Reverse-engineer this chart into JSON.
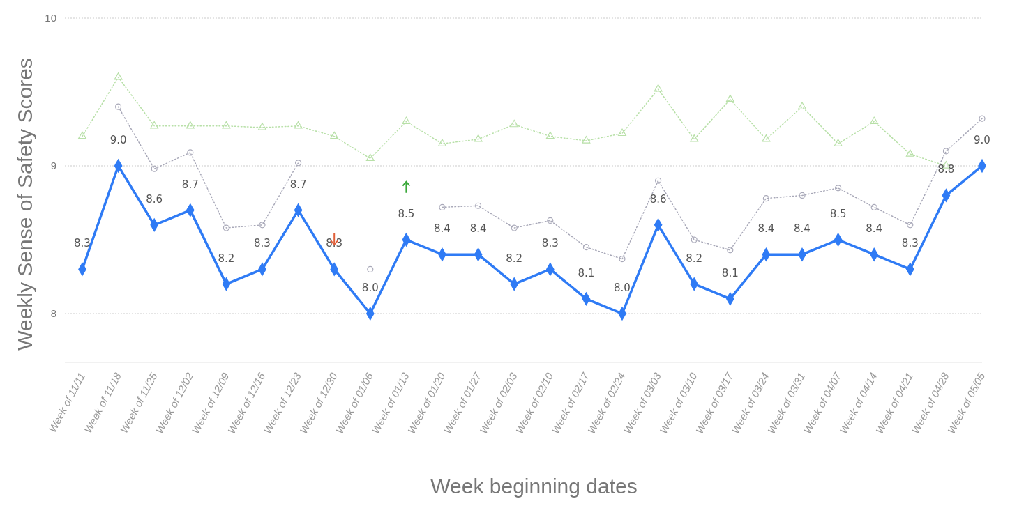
{
  "chart_data": {
    "type": "line",
    "xlabel": "Week beginning dates",
    "ylabel": "Weekly Sense of Safety Scores",
    "categories": [
      "Week of 11/11",
      "Week of 11/18",
      "Week of 11/25",
      "Week of 12/02",
      "Week of 12/09",
      "Week of 12/16",
      "Week of 12/23",
      "Week of 12/30",
      "Week of 01/06",
      "Week of 01/13",
      "Week of 01/20",
      "Week of 01/27",
      "Week of 02/03",
      "Week of 02/10",
      "Week of 02/17",
      "Week of 02/24",
      "Week of 03/03",
      "Week of 03/10",
      "Week of 03/17",
      "Week of 03/24",
      "Week of 03/31",
      "Week of 04/07",
      "Week of 04/14",
      "Week of 04/21",
      "Week of 04/28",
      "Week of 05/05"
    ],
    "series": [
      {
        "color": "#b8e0a8",
        "marker": "triangle",
        "line_style": "dotted",
        "values": [
          9.2,
          9.6,
          9.27,
          9.27,
          9.27,
          9.26,
          9.27,
          9.2,
          9.05,
          9.3,
          9.15,
          9.18,
          9.28,
          9.2,
          9.17,
          9.22,
          9.52,
          9.18,
          9.45,
          9.18,
          9.4,
          9.15,
          9.3,
          9.08,
          9.0,
          null
        ]
      },
      {
        "color": "#a8a8b8",
        "marker": "circle",
        "line_style": "dotted",
        "values": [
          null,
          9.4,
          8.98,
          9.09,
          8.58,
          8.6,
          9.02,
          null,
          8.3,
          null,
          8.72,
          8.73,
          8.58,
          8.63,
          8.45,
          8.37,
          8.9,
          8.5,
          8.43,
          8.78,
          8.8,
          8.85,
          8.72,
          8.6,
          9.1,
          9.32
        ]
      },
      {
        "color": "#2f7bf5",
        "marker": "diamond",
        "line_style": "solid",
        "value_labels": [
          "8.3",
          "9.0",
          "8.6",
          "8.7",
          "8.2",
          "8.3",
          "8.7",
          "8.3",
          "8.0",
          "8.5",
          "8.4",
          "8.4",
          "8.2",
          "8.3",
          "8.1",
          "8.0",
          "8.6",
          "8.2",
          "8.1",
          "8.4",
          "8.4",
          "8.5",
          "8.4",
          "8.3",
          "8.8",
          "9.0"
        ],
        "values": [
          8.3,
          9.0,
          8.6,
          8.7,
          8.2,
          8.3,
          8.7,
          8.3,
          8.0,
          8.5,
          8.4,
          8.4,
          8.2,
          8.3,
          8.1,
          8.0,
          8.6,
          8.2,
          8.1,
          8.4,
          8.4,
          8.5,
          8.4,
          8.3,
          8.8,
          9.0
        ]
      }
    ],
    "ylim": [
      7.67,
      10
    ],
    "yticks": [
      8,
      9,
      10
    ],
    "grid": "y"
  }
}
